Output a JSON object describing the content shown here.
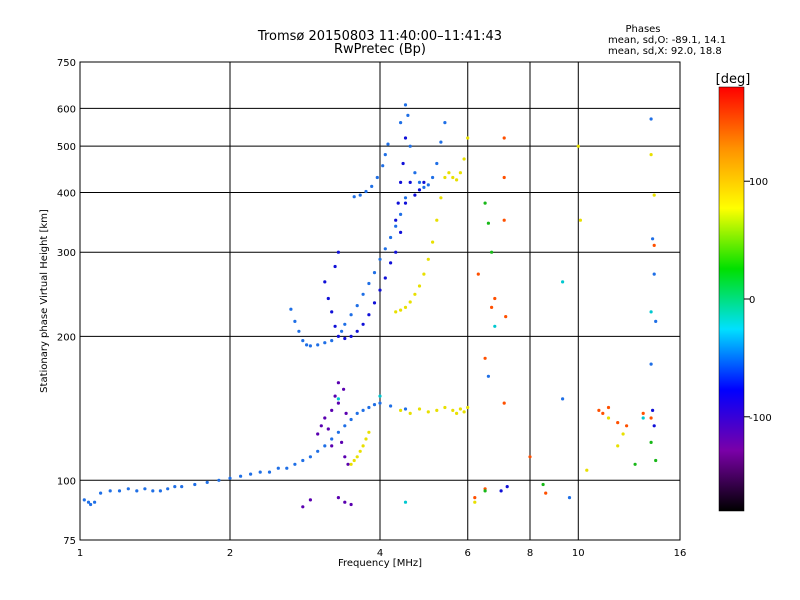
{
  "chart_data": {
    "type": "scatter",
    "title": "Tromsø 20150803 11:40:00–11:41:43",
    "subtitle": "RwPretec (Bp)",
    "xlabel": "Frequency [MHz]",
    "ylabel": "Stationary phase Virtual Height [km]",
    "x_scale": "log",
    "y_scale": "log",
    "xlim": [
      1,
      16
    ],
    "ylim": [
      75,
      750
    ],
    "x_ticks": [
      1,
      2,
      4,
      6,
      8,
      10,
      16
    ],
    "y_ticks": [
      75,
      100,
      200,
      300,
      400,
      500,
      600,
      750
    ],
    "grid": true,
    "phase_box": {
      "heading": "Phases",
      "line_o": "mean, sd,O: -89.1, 14.1",
      "line_x": "mean, sd,X:  92.0, 18.8"
    },
    "colorbar": {
      "label": "[deg]",
      "range": [
        -180,
        180
      ],
      "ticks": [
        100,
        0,
        -100
      ],
      "colors": [
        "#000000",
        "#7a00a8",
        "#0000ff",
        "#00e0ff",
        "#00e000",
        "#ffff00",
        "#ff9000",
        "#ff0000"
      ]
    },
    "series": [
      {
        "phase_deg": -110,
        "color": "#1f6fe6",
        "points": [
          [
            1.02,
            91
          ],
          [
            1.04,
            90
          ],
          [
            1.05,
            89
          ],
          [
            1.07,
            90
          ],
          [
            1.1,
            94
          ],
          [
            1.15,
            95
          ],
          [
            1.2,
            95
          ],
          [
            1.25,
            96
          ],
          [
            1.3,
            95
          ],
          [
            1.35,
            96
          ],
          [
            1.4,
            95
          ],
          [
            1.45,
            95
          ],
          [
            1.5,
            96
          ],
          [
            1.55,
            97
          ],
          [
            1.6,
            97
          ],
          [
            1.7,
            98
          ],
          [
            1.8,
            99
          ],
          [
            1.9,
            100
          ],
          [
            2.0,
            101
          ],
          [
            2.1,
            102
          ],
          [
            2.2,
            103
          ],
          [
            2.3,
            104
          ],
          [
            2.4,
            104
          ],
          [
            2.5,
            106
          ],
          [
            2.6,
            106
          ],
          [
            2.7,
            108
          ],
          [
            2.8,
            110
          ],
          [
            2.9,
            112
          ],
          [
            3.0,
            115
          ],
          [
            3.1,
            118
          ],
          [
            3.2,
            122
          ],
          [
            3.3,
            126
          ],
          [
            3.4,
            130
          ],
          [
            3.5,
            134
          ],
          [
            3.6,
            138
          ],
          [
            3.7,
            140
          ],
          [
            3.8,
            142
          ],
          [
            3.9,
            144
          ],
          [
            4.0,
            145
          ],
          [
            4.2,
            143
          ],
          [
            4.5,
            141
          ],
          [
            2.65,
            228
          ],
          [
            2.7,
            215
          ],
          [
            2.75,
            205
          ],
          [
            2.8,
            196
          ],
          [
            2.85,
            192
          ],
          [
            2.9,
            191
          ],
          [
            3.0,
            192
          ],
          [
            3.1,
            194
          ],
          [
            3.2,
            196
          ],
          [
            3.35,
            205
          ],
          [
            3.4,
            212
          ],
          [
            3.5,
            222
          ],
          [
            3.6,
            232
          ],
          [
            3.7,
            245
          ],
          [
            3.8,
            258
          ],
          [
            3.9,
            272
          ],
          [
            4.0,
            290
          ],
          [
            4.1,
            305
          ],
          [
            4.2,
            322
          ],
          [
            4.3,
            340
          ],
          [
            4.4,
            360
          ],
          [
            4.5,
            390
          ],
          [
            3.55,
            392
          ],
          [
            3.65,
            395
          ],
          [
            3.75,
            402
          ],
          [
            3.85,
            412
          ],
          [
            3.95,
            430
          ],
          [
            4.05,
            455
          ],
          [
            4.1,
            480
          ],
          [
            4.15,
            505
          ],
          [
            4.4,
            560
          ],
          [
            4.5,
            610
          ],
          [
            4.55,
            580
          ],
          [
            4.6,
            500
          ],
          [
            4.7,
            440
          ],
          [
            4.8,
            420
          ],
          [
            4.9,
            410
          ],
          [
            5.0,
            415
          ],
          [
            5.1,
            430
          ],
          [
            5.2,
            460
          ],
          [
            5.3,
            510
          ],
          [
            5.4,
            560
          ],
          [
            6.6,
            165
          ],
          [
            9.3,
            148
          ],
          [
            9.6,
            92
          ],
          [
            14.0,
            570
          ],
          [
            14.1,
            320
          ],
          [
            14.2,
            270
          ],
          [
            14.3,
            215
          ],
          [
            14.0,
            175
          ]
        ]
      },
      {
        "phase_deg": -115,
        "color": "#1010d8",
        "points": [
          [
            3.15,
            240
          ],
          [
            3.2,
            225
          ],
          [
            3.25,
            210
          ],
          [
            3.3,
            200
          ],
          [
            3.4,
            198
          ],
          [
            3.5,
            200
          ],
          [
            3.6,
            205
          ],
          [
            3.7,
            212
          ],
          [
            3.8,
            222
          ],
          [
            3.9,
            235
          ],
          [
            4.0,
            250
          ],
          [
            4.1,
            265
          ],
          [
            4.2,
            285
          ],
          [
            4.3,
            300
          ],
          [
            4.4,
            330
          ],
          [
            4.5,
            380
          ],
          [
            4.3,
            350
          ],
          [
            4.35,
            380
          ],
          [
            4.4,
            420
          ],
          [
            4.45,
            460
          ],
          [
            4.5,
            520
          ],
          [
            4.6,
            420
          ],
          [
            4.7,
            395
          ],
          [
            4.8,
            405
          ],
          [
            4.9,
            420
          ],
          [
            7.0,
            95
          ],
          [
            7.2,
            97
          ],
          [
            14.1,
            140
          ],
          [
            14.2,
            130
          ],
          [
            3.1,
            260
          ],
          [
            3.25,
            280
          ],
          [
            3.3,
            300
          ]
        ]
      },
      {
        "phase_deg": -140,
        "color": "#5a00b0",
        "points": [
          [
            3.0,
            125
          ],
          [
            3.05,
            130
          ],
          [
            3.1,
            135
          ],
          [
            3.15,
            128
          ],
          [
            3.2,
            140
          ],
          [
            3.25,
            150
          ],
          [
            3.3,
            145
          ],
          [
            3.35,
            120
          ],
          [
            3.4,
            112
          ],
          [
            3.45,
            108
          ],
          [
            3.3,
            92
          ],
          [
            3.4,
            90
          ],
          [
            3.5,
            89
          ],
          [
            2.8,
            88
          ],
          [
            2.9,
            91
          ],
          [
            3.2,
            118
          ],
          [
            3.3,
            160
          ],
          [
            3.38,
            155
          ],
          [
            3.42,
            138
          ]
        ]
      },
      {
        "phase_deg": 90,
        "color": "#e8e000",
        "points": [
          [
            3.5,
            108
          ],
          [
            3.55,
            110
          ],
          [
            3.6,
            112
          ],
          [
            3.65,
            115
          ],
          [
            3.7,
            118
          ],
          [
            3.75,
            122
          ],
          [
            3.8,
            126
          ],
          [
            4.3,
            225
          ],
          [
            4.4,
            227
          ],
          [
            4.5,
            230
          ],
          [
            4.6,
            236
          ],
          [
            4.7,
            245
          ],
          [
            4.8,
            255
          ],
          [
            4.9,
            270
          ],
          [
            5.0,
            290
          ],
          [
            5.1,
            315
          ],
          [
            5.2,
            350
          ],
          [
            5.3,
            390
          ],
          [
            5.4,
            430
          ],
          [
            5.5,
            440
          ],
          [
            5.6,
            430
          ],
          [
            5.7,
            425
          ],
          [
            5.8,
            440
          ],
          [
            5.9,
            470
          ],
          [
            6.0,
            520
          ],
          [
            5.6,
            140
          ],
          [
            5.7,
            138
          ],
          [
            5.8,
            141
          ],
          [
            5.9,
            139
          ],
          [
            6.0,
            142
          ],
          [
            4.4,
            140
          ],
          [
            4.6,
            138
          ],
          [
            4.8,
            141
          ],
          [
            5.0,
            139
          ],
          [
            5.2,
            140
          ],
          [
            5.4,
            142
          ],
          [
            6.2,
            90
          ],
          [
            10.0,
            500
          ],
          [
            10.1,
            350
          ],
          [
            10.4,
            105
          ],
          [
            11.5,
            135
          ],
          [
            12.0,
            118
          ],
          [
            12.3,
            125
          ],
          [
            14.0,
            480
          ],
          [
            14.2,
            395
          ]
        ]
      },
      {
        "phase_deg": 140,
        "color": "#ff5000",
        "points": [
          [
            6.3,
            270
          ],
          [
            6.8,
            240
          ],
          [
            6.7,
            230
          ],
          [
            7.1,
            520
          ],
          [
            7.1,
            430
          ],
          [
            7.1,
            350
          ],
          [
            7.15,
            220
          ],
          [
            6.5,
            180
          ],
          [
            7.1,
            145
          ],
          [
            8.0,
            112
          ],
          [
            8.6,
            94
          ],
          [
            11.0,
            140
          ],
          [
            11.2,
            138
          ],
          [
            11.5,
            142
          ],
          [
            12.0,
            132
          ],
          [
            12.5,
            130
          ],
          [
            13.5,
            138
          ],
          [
            14.2,
            310
          ],
          [
            14.0,
            135
          ],
          [
            6.2,
            92
          ],
          [
            6.5,
            96
          ]
        ]
      },
      {
        "phase_deg": 30,
        "color": "#18b818",
        "points": [
          [
            6.5,
            380
          ],
          [
            6.6,
            345
          ],
          [
            6.7,
            300
          ],
          [
            6.5,
            95
          ],
          [
            13.0,
            108
          ],
          [
            14.0,
            120
          ],
          [
            14.3,
            110
          ],
          [
            8.5,
            98
          ]
        ]
      },
      {
        "phase_deg": -60,
        "color": "#00c8d0",
        "points": [
          [
            3.3,
            148
          ],
          [
            4.0,
            150
          ],
          [
            4.5,
            90
          ],
          [
            6.8,
            210
          ],
          [
            9.3,
            260
          ],
          [
            13.5,
            135
          ],
          [
            14.0,
            225
          ]
        ]
      }
    ]
  }
}
